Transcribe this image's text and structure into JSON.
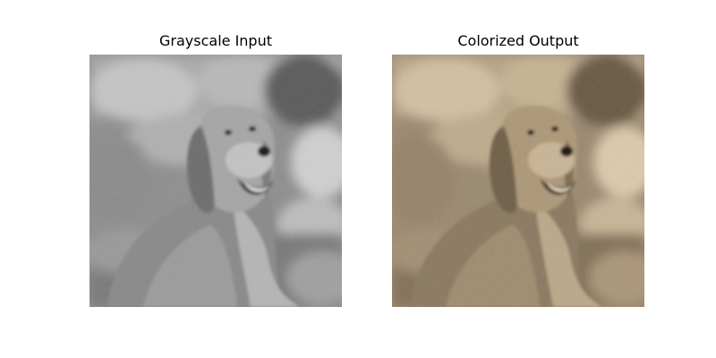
{
  "panels": [
    {
      "title": "Grayscale Input",
      "tone": "grayscale"
    },
    {
      "title": "Colorized Output",
      "tone": "sepia"
    }
  ]
}
